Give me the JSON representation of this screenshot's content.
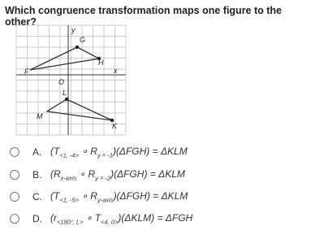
{
  "question": "Which congruence transformation maps one figure to the other?",
  "graph": {
    "labels": {
      "y": "y",
      "x": "x",
      "origin": "O",
      "G": "G",
      "H": "H",
      "F": "F",
      "L": "L",
      "M": "M",
      "K": "K"
    }
  },
  "options": [
    {
      "letter": "A.",
      "parts": [
        "(T",
        "<1, -4>",
        " ∘ R",
        "y = -1",
        ")(ΔFGH) = ΔKLM"
      ]
    },
    {
      "letter": "B.",
      "parts": [
        "(R",
        "x-axis",
        " ∘ R",
        "y = -2",
        ")(ΔFGH) = ΔKLM"
      ]
    },
    {
      "letter": "C.",
      "parts": [
        "(T",
        "<1, -5>",
        " ∘ R",
        "y-axis",
        ")(ΔFGH) = ΔKLM"
      ]
    },
    {
      "letter": "D.",
      "parts": [
        "(r",
        "<180°, L>",
        " ∘ T",
        "<4, 0>",
        ")(ΔKLM) = ΔFGH"
      ]
    }
  ]
}
